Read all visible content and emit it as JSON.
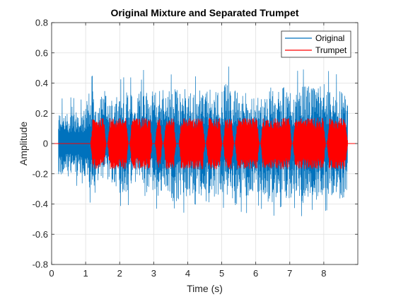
{
  "chart_data": {
    "type": "line",
    "title": "Original Mixture and Separated Trumpet",
    "xlabel": "Time (s)",
    "ylabel": "Amplitude",
    "xlim": [
      0,
      9
    ],
    "ylim": [
      -0.8,
      0.8
    ],
    "x_ticks": [
      0,
      1,
      2,
      3,
      4,
      5,
      6,
      7,
      8
    ],
    "x_tick_labels": [
      "0",
      "1",
      "2",
      "3",
      "4",
      "5",
      "6",
      "7",
      "8"
    ],
    "y_ticks": [
      -0.8,
      -0.6,
      -0.4,
      -0.2,
      0,
      0.2,
      0.4,
      0.6,
      0.8
    ],
    "y_tick_labels": [
      "-0.8",
      "-0.6",
      "-0.4",
      "-0.2",
      "0",
      "0.2",
      "0.4",
      "0.6",
      "0.8"
    ],
    "grid": true,
    "legend_position": "top-right",
    "series": [
      {
        "name": "Original",
        "color": "#0072BD",
        "x_start": 0.2,
        "x_end": 8.7,
        "envelope": {
          "t": [
            0.2,
            0.3,
            0.5,
            0.6,
            0.7,
            0.8,
            0.95,
            1.05,
            1.2,
            1.3,
            1.4,
            1.6,
            1.8,
            2.0,
            2.2,
            2.4,
            2.5,
            2.7,
            2.75,
            2.9,
            3.0,
            3.2,
            3.4,
            3.6,
            3.8,
            4.0,
            4.2,
            4.4,
            4.6,
            4.8,
            5.0,
            5.2,
            5.4,
            5.6,
            5.8,
            6.0,
            6.2,
            6.4,
            6.6,
            6.8,
            7.0,
            7.2,
            7.4,
            7.6,
            7.8,
            8.0,
            8.2,
            8.4,
            8.6,
            8.7
          ],
          "pos": [
            0.27,
            0.3,
            0.26,
            0.33,
            0.27,
            0.3,
            0.28,
            0.4,
            0.45,
            0.3,
            0.37,
            0.47,
            0.34,
            0.42,
            0.45,
            0.43,
            0.36,
            0.72,
            0.45,
            0.46,
            0.42,
            0.48,
            0.44,
            0.47,
            0.44,
            0.5,
            0.44,
            0.47,
            0.45,
            0.44,
            0.47,
            0.51,
            0.45,
            0.44,
            0.44,
            0.36,
            0.44,
            0.49,
            0.4,
            0.48,
            0.43,
            0.48,
            0.49,
            0.47,
            0.45,
            0.55,
            0.45,
            0.46,
            0.42,
            0.32
          ],
          "neg": [
            -0.25,
            -0.3,
            -0.27,
            -0.28,
            -0.3,
            -0.25,
            -0.27,
            -0.38,
            -0.4,
            -0.3,
            -0.35,
            -0.3,
            -0.37,
            -0.41,
            -0.43,
            -0.35,
            -0.36,
            -0.32,
            -0.46,
            -0.35,
            -0.41,
            -0.46,
            -0.4,
            -0.56,
            -0.44,
            -0.48,
            -0.4,
            -0.43,
            -0.5,
            -0.44,
            -0.42,
            -0.44,
            -0.53,
            -0.44,
            -0.47,
            -0.39,
            -0.44,
            -0.55,
            -0.44,
            -0.41,
            -0.49,
            -0.4,
            -0.51,
            -0.42,
            -0.48,
            -0.45,
            -0.43,
            -0.51,
            -0.46,
            -0.24
          ]
        }
      },
      {
        "name": "Trumpet",
        "color": "#FF0000",
        "x_start": 1.15,
        "x_end": 8.7,
        "note_segments": [
          [
            1.15,
            1.6
          ],
          [
            1.65,
            2.25
          ],
          [
            2.3,
            2.95
          ],
          [
            3.05,
            3.25
          ],
          [
            3.3,
            3.65
          ],
          [
            3.75,
            4.5
          ],
          [
            4.55,
            5.0
          ],
          [
            5.05,
            5.35
          ],
          [
            5.4,
            6.1
          ],
          [
            6.15,
            7.05
          ],
          [
            7.1,
            8.05
          ],
          [
            8.1,
            8.7
          ]
        ],
        "amplitude": 0.17,
        "baseline": 0
      }
    ]
  }
}
